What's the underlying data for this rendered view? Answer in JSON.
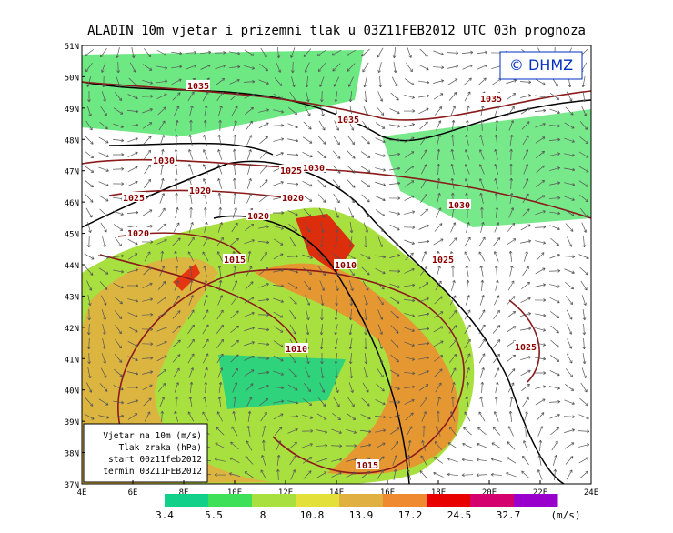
{
  "title": "ALADIN 10m vjetar i prizemni tlak u 03Z11FEB2012 UTC 03h prognoza",
  "logo": "© DHMZ",
  "lat_labels": [
    "51N",
    "50N",
    "49N",
    "48N",
    "47N",
    "46N",
    "45N",
    "44N",
    "43N",
    "42N",
    "41N",
    "40N",
    "39N",
    "38N",
    "37N"
  ],
  "lon_labels": [
    "4E",
    "6E",
    "8E",
    "10E",
    "12E",
    "14E",
    "16E",
    "18E",
    "20E",
    "22E",
    "24E"
  ],
  "isobar_labels": [
    "1035",
    "1035",
    "1035",
    "1030",
    "1025",
    "1030",
    "1025",
    "1020",
    "1020",
    "1020",
    "1030",
    "1020",
    "1015",
    "1010",
    "1025",
    "1010",
    "1025",
    "1015"
  ],
  "legend_lines": [
    "Vjetar na 10m (m/s)",
    "Tlak zraka (hPa)",
    "start 00z11feb2012",
    "termin 03Z11FEB2012"
  ],
  "colorbar": {
    "colors": [
      "#10d08a",
      "#3ee05a",
      "#a8e040",
      "#e4e03a",
      "#e0b040",
      "#f08a30",
      "#e80000",
      "#d4006e",
      "#9a00cc"
    ],
    "labels": [
      "3.4",
      "5.5",
      "8",
      "10.8",
      "13.9",
      "17.2",
      "24.5",
      "32.7"
    ],
    "unit": "(m/s)"
  }
}
